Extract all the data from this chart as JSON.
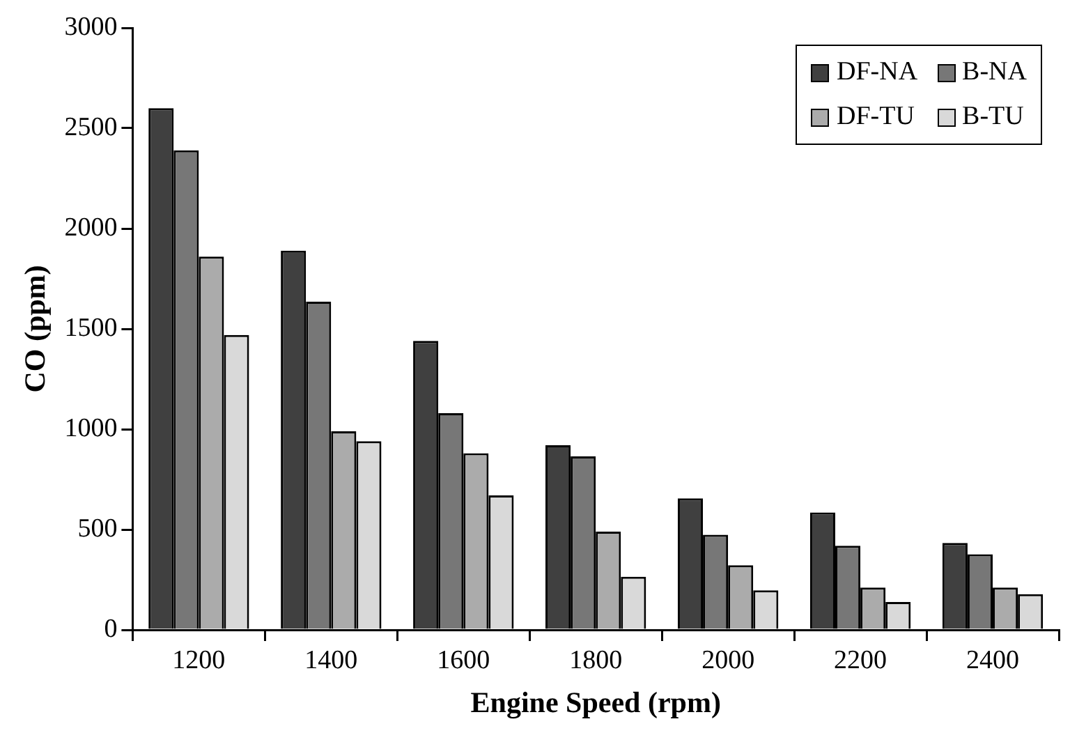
{
  "chart_data": {
    "type": "bar",
    "xlabel": "Engine Speed (rpm)",
    "ylabel": "CO (ppm)",
    "categories": [
      "1200",
      "1400",
      "1600",
      "1800",
      "2000",
      "2200",
      "2400"
    ],
    "series": [
      {
        "name": "DF-NA",
        "color": "#404040",
        "values": [
          2600,
          1890,
          1440,
          920,
          655,
          585,
          433
        ]
      },
      {
        "name": "B-NA",
        "color": "#777777",
        "values": [
          2390,
          1635,
          1080,
          865,
          474,
          419,
          377
        ]
      },
      {
        "name": "DF-TU",
        "color": "#ababab",
        "values": [
          1860,
          990,
          880,
          490,
          322,
          211,
          211
        ]
      },
      {
        "name": "B-TU",
        "color": "#d9d9d9",
        "values": [
          1470,
          940,
          670,
          265,
          197,
          139,
          178
        ]
      }
    ],
    "ylim": [
      0,
      3000
    ],
    "yticks": [
      0,
      500,
      1000,
      1500,
      2000,
      2500,
      3000
    ],
    "legend": "top right"
  }
}
